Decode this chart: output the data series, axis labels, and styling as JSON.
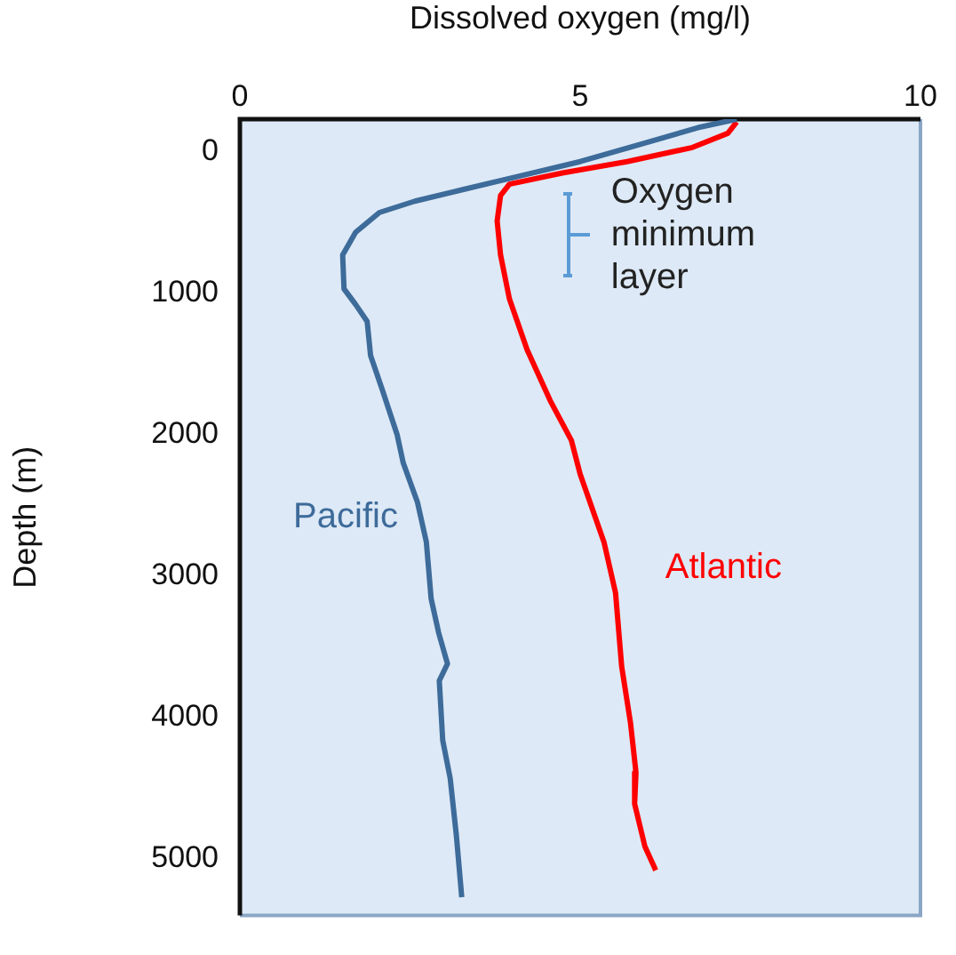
{
  "chart_data": {
    "type": "line",
    "xlabel": "Dissolved oxygen (mg/l)",
    "ylabel": "Depth (m)",
    "xlim": [
      0,
      10
    ],
    "xticks": [
      0,
      5,
      10
    ],
    "ylim": [
      5400,
      -230
    ],
    "yticks": [
      0,
      1000,
      2000,
      3000,
      4000,
      5000
    ],
    "grid": false,
    "legend": false,
    "marker": "none",
    "line_style": "solid",
    "annotations": [
      "Oxygen minimum layer"
    ],
    "series": [
      {
        "name": "Pacific",
        "color": "#3d6b9a",
        "x": [
          7.3,
          6.73,
          5.87,
          5.0,
          4.13,
          3.26,
          2.57,
          2.05,
          1.7,
          1.51,
          1.53,
          1.7,
          1.87,
          1.92,
          2.09,
          2.31,
          2.4,
          2.61,
          2.74,
          2.81,
          2.92,
          3.05,
          2.93,
          2.98,
          3.09,
          3.18,
          3.26
        ],
        "values": [
          -230,
          -170,
          -50,
          70,
          170,
          270,
          350,
          430,
          570,
          730,
          970,
          1080,
          1200,
          1440,
          1680,
          2000,
          2200,
          2480,
          2760,
          3160,
          3400,
          3620,
          3740,
          4160,
          4430,
          4830,
          5270
        ]
      },
      {
        "name": "Atlantic",
        "color": "#ff0000",
        "x": [
          7.3,
          7.17,
          6.65,
          5.69,
          4.74,
          3.96,
          3.83,
          3.78,
          3.83,
          3.96,
          4.22,
          4.56,
          4.87,
          5.0,
          5.35,
          5.52,
          5.61,
          5.74,
          5.82,
          5.8,
          5.95,
          6.11
        ],
        "values": [
          -210,
          -130,
          -30,
          70,
          150,
          230,
          310,
          490,
          730,
          1040,
          1400,
          1760,
          2040,
          2280,
          2760,
          3120,
          3640,
          4040,
          4390,
          4610,
          4910,
          5080
        ]
      }
    ]
  }
}
